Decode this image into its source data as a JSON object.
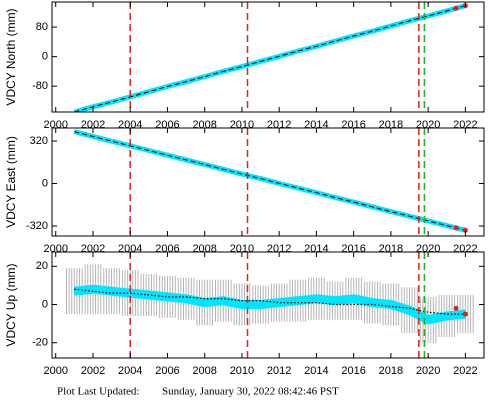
{
  "chart_data": [
    {
      "type": "line",
      "ylabel": "VDCY North (mm)",
      "xlim": [
        1999.8,
        2023
      ],
      "ylim": [
        -150,
        148
      ],
      "xticks": [
        2000,
        2002,
        2004,
        2006,
        2008,
        2010,
        2012,
        2014,
        2016,
        2018,
        2020,
        2022
      ],
      "yticks": [
        -80,
        0,
        80
      ],
      "vlines": [
        {
          "value": 2004,
          "color": "#e0201c"
        },
        {
          "value": 2010.3,
          "color": "#e0201c"
        },
        {
          "value": 2019.5,
          "color": "#e0201c"
        },
        {
          "value": 2019.8,
          "color": "#1fb21f"
        }
      ],
      "series": [
        {
          "color": "#00e5ff",
          "style": "band",
          "x": [
            2001,
            2002,
            2003,
            2004,
            2005,
            2006,
            2007,
            2008,
            2009,
            2010,
            2011,
            2012,
            2013,
            2014,
            2015,
            2016,
            2017,
            2018,
            2019,
            2020,
            2021,
            2022
          ],
          "values": [
            -150,
            -136,
            -123,
            -109,
            -95,
            -81,
            -68,
            -54,
            -40,
            -27,
            -13,
            1,
            15,
            28,
            42,
            56,
            69,
            83,
            97,
            110,
            124,
            138
          ]
        },
        {
          "color": "#000000",
          "style": "dashed",
          "x": [
            2001,
            2002,
            2003,
            2004,
            2005,
            2006,
            2007,
            2008,
            2009,
            2010,
            2011,
            2012,
            2013,
            2014,
            2015,
            2016,
            2017,
            2018,
            2019,
            2020,
            2021,
            2022
          ],
          "values": [
            -150,
            -136,
            -123,
            -109,
            -95,
            -81,
            -68,
            -54,
            -40,
            -27,
            -13,
            1,
            15,
            28,
            42,
            56,
            69,
            83,
            97,
            110,
            124,
            138
          ]
        },
        {
          "color": "#e0201c",
          "style": "points",
          "x": [
            2021.5,
            2022
          ],
          "values": [
            131,
            138
          ]
        }
      ]
    },
    {
      "type": "line",
      "ylabel": "VDCY East (mm)",
      "xlim": [
        1999.8,
        2023
      ],
      "ylim": [
        -395,
        418
      ],
      "xticks": [
        2000,
        2002,
        2004,
        2006,
        2008,
        2010,
        2012,
        2014,
        2016,
        2018,
        2020,
        2022
      ],
      "yticks": [
        -320,
        0,
        320
      ],
      "vlines": [
        {
          "value": 2004,
          "color": "#e0201c"
        },
        {
          "value": 2010.3,
          "color": "#e0201c"
        },
        {
          "value": 2019.5,
          "color": "#e0201c"
        },
        {
          "value": 2019.8,
          "color": "#1fb21f"
        }
      ],
      "series": [
        {
          "color": "#00e5ff",
          "style": "band",
          "x": [
            2001,
            2002,
            2003,
            2004,
            2005,
            2006,
            2007,
            2008,
            2009,
            2010,
            2011,
            2012,
            2013,
            2014,
            2015,
            2016,
            2017,
            2018,
            2019,
            2020,
            2021,
            2022
          ],
          "values": [
            390,
            355,
            319,
            284,
            249,
            213,
            178,
            143,
            107,
            72,
            37,
            1,
            -34,
            -69,
            -105,
            -140,
            -175,
            -211,
            -246,
            -281,
            -317,
            -352
          ]
        },
        {
          "color": "#000000",
          "style": "dashed",
          "x": [
            2001,
            2002,
            2003,
            2004,
            2005,
            2006,
            2007,
            2008,
            2009,
            2010,
            2011,
            2012,
            2013,
            2014,
            2015,
            2016,
            2017,
            2018,
            2019,
            2020,
            2021,
            2022
          ],
          "values": [
            390,
            355,
            319,
            284,
            249,
            213,
            178,
            143,
            107,
            72,
            37,
            1,
            -34,
            -69,
            -105,
            -140,
            -175,
            -211,
            -246,
            -281,
            -317,
            -352
          ]
        },
        {
          "color": "#e0201c",
          "style": "points",
          "x": [
            2021.5,
            2022
          ],
          "values": [
            -334,
            -352
          ]
        }
      ]
    },
    {
      "type": "line",
      "ylabel": "VDCY Up (mm)",
      "xlim": [
        1999.8,
        2023
      ],
      "ylim": [
        -28,
        27.5
      ],
      "xticks": [
        2000,
        2002,
        2004,
        2006,
        2008,
        2010,
        2012,
        2014,
        2016,
        2018,
        2020,
        2022
      ],
      "yticks": [
        -20,
        0,
        20
      ],
      "vlines": [
        {
          "value": 2004,
          "color": "#e0201c"
        },
        {
          "value": 2010.3,
          "color": "#e0201c"
        },
        {
          "value": 2019.5,
          "color": "#e0201c"
        },
        {
          "value": 2019.8,
          "color": "#1fb21f"
        }
      ],
      "series": [
        {
          "color": "#00e5ff",
          "style": "band",
          "error_color": "#b4b4b4",
          "x": [
            2001,
            2002,
            2003,
            2004,
            2005,
            2006,
            2007,
            2008,
            2009,
            2010,
            2011,
            2012,
            2013,
            2014,
            2015,
            2016,
            2017,
            2018,
            2019,
            2020,
            2021,
            2022
          ],
          "values": [
            7,
            8,
            7,
            6,
            5,
            4,
            3,
            1,
            2,
            0,
            0,
            1,
            2,
            3,
            2,
            3,
            1,
            0,
            -3,
            -8,
            -6,
            -5
          ],
          "errors": [
            12,
            13,
            12,
            12,
            11,
            11,
            11,
            12,
            11,
            11,
            10,
            10,
            11,
            11,
            10,
            11,
            11,
            11,
            12,
            12,
            11,
            10
          ]
        },
        {
          "color": "#000000",
          "style": "dotted",
          "x": [
            2001,
            2002,
            2003,
            2004,
            2005,
            2006,
            2007,
            2008,
            2009,
            2010,
            2011,
            2012,
            2013,
            2014,
            2015,
            2016,
            2017,
            2018,
            2019,
            2020,
            2021,
            2022
          ],
          "values": [
            8,
            7,
            6,
            6,
            5,
            4,
            4,
            3,
            3,
            2,
            2,
            1,
            1,
            1,
            0,
            0,
            0,
            -1,
            -2,
            -4,
            -5,
            -5
          ]
        },
        {
          "color": "#e0201c",
          "style": "points",
          "x": [
            2021.5,
            2022
          ],
          "values": [
            -2,
            -5
          ]
        }
      ]
    }
  ],
  "footer": {
    "label": "Plot Last Updated:",
    "timestamp": "Sunday, January 30, 2022 08:42:46 PST"
  }
}
